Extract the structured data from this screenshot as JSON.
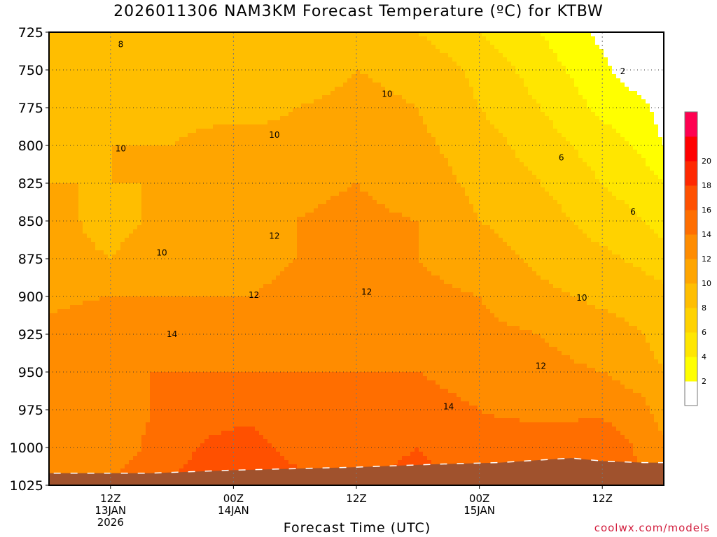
{
  "title": "2026011306 NAM3KM Forecast Temperature (ºC) for KTBW",
  "credit": "coolwx.com/models",
  "chart_data": {
    "type": "heatmap",
    "title": "2026011306 NAM3KM Forecast Temperature (ºC) for KTBW",
    "xlabel": "Forecast Time (UTC)",
    "ylabel": "",
    "y_ticks": [
      725,
      750,
      775,
      800,
      825,
      850,
      875,
      900,
      925,
      950,
      975,
      1000,
      1025
    ],
    "ylim": [
      1025,
      725
    ],
    "xlim_hours": [
      0,
      60
    ],
    "x_ticks": [
      {
        "hour": 6,
        "labels": [
          "12Z",
          "13JAN",
          "2026"
        ]
      },
      {
        "hour": 18,
        "labels": [
          "00Z",
          "14JAN"
        ]
      },
      {
        "hour": 30,
        "labels": [
          "12Z"
        ]
      },
      {
        "hour": 42,
        "labels": [
          "00Z",
          "15JAN"
        ]
      },
      {
        "hour": 54,
        "labels": [
          "12Z"
        ]
      }
    ],
    "grid": true,
    "colorbar": {
      "levels": [
        0,
        2,
        4,
        6,
        8,
        10,
        12,
        14,
        16,
        18,
        20,
        22
      ],
      "labels": [
        "2",
        "4",
        "6",
        "8",
        "10",
        "12",
        "14",
        "16",
        "18",
        "20"
      ],
      "colors": [
        "#ffffff",
        "#ffff00",
        "#ffe600",
        "#ffd200",
        "#ffbe00",
        "#ffa500",
        "#ff8c00",
        "#ff6e00",
        "#ff5000",
        "#ff2800",
        "#ff0000",
        "#ff0050"
      ]
    },
    "contour_labels": [
      {
        "text": "8",
        "hour": 7,
        "p": 733
      },
      {
        "text": "2",
        "hour": 56,
        "p": 751
      },
      {
        "text": "10",
        "hour": 33,
        "p": 766
      },
      {
        "text": "10",
        "hour": 22,
        "p": 793
      },
      {
        "text": "10",
        "hour": 7,
        "p": 802
      },
      {
        "text": "6",
        "hour": 50,
        "p": 808
      },
      {
        "text": "6",
        "hour": 57,
        "p": 844
      },
      {
        "text": "12",
        "hour": 22,
        "p": 860
      },
      {
        "text": "10",
        "hour": 11,
        "p": 871
      },
      {
        "text": "12",
        "hour": 20,
        "p": 899
      },
      {
        "text": "12",
        "hour": 31,
        "p": 897
      },
      {
        "text": "10",
        "hour": 52,
        "p": 901
      },
      {
        "text": "14",
        "hour": 12,
        "p": 925
      },
      {
        "text": "12",
        "hour": 48,
        "p": 946
      },
      {
        "text": "14",
        "hour": 39,
        "p": 973
      }
    ],
    "temperature_field": {
      "hours": [
        0,
        6,
        12,
        16,
        18,
        20,
        24,
        30,
        36,
        42,
        48,
        54,
        58,
        60
      ],
      "pressure": [
        725,
        750,
        775,
        800,
        825,
        850,
        875,
        900,
        925,
        950,
        975,
        1000,
        1025
      ],
      "values": [
        [
          8.0,
          8.5,
          8.5,
          9.0,
          9.0,
          9.0,
          9.0,
          9.5,
          8.0,
          6.0,
          4.0,
          1.5,
          0.5,
          0.5
        ],
        [
          9.0,
          9.0,
          9.0,
          9.0,
          9.0,
          9.0,
          9.0,
          10.0,
          9.5,
          7.5,
          5.0,
          2.5,
          0.5,
          0.5
        ],
        [
          9.5,
          9.5,
          9.5,
          9.5,
          9.5,
          9.5,
          10.0,
          10.5,
          10.0,
          8.0,
          6.0,
          3.5,
          2.5,
          1.0
        ],
        [
          9.5,
          10.0,
          10.0,
          10.5,
          10.5,
          10.5,
          10.5,
          11.0,
          10.5,
          9.0,
          7.0,
          5.0,
          3.5,
          2.0
        ],
        [
          10.0,
          10.0,
          10.0,
          11.0,
          11.0,
          11.0,
          11.5,
          12.0,
          11.0,
          9.5,
          8.0,
          6.0,
          5.0,
          4.0
        ],
        [
          10.5,
          9.5,
          10.5,
          11.0,
          11.5,
          11.5,
          12.0,
          12.5,
          12.0,
          10.0,
          9.0,
          7.0,
          6.0,
          5.0
        ],
        [
          10.5,
          10.0,
          11.0,
          11.0,
          11.5,
          11.5,
          12.0,
          12.5,
          12.0,
          11.0,
          9.5,
          8.5,
          7.5,
          7.0
        ],
        [
          11.5,
          12.0,
          12.0,
          12.0,
          12.0,
          12.0,
          12.5,
          12.5,
          12.5,
          12.0,
          10.5,
          9.5,
          9.0,
          8.5
        ],
        [
          12.5,
          13.5,
          13.5,
          13.5,
          13.5,
          13.5,
          13.5,
          13.5,
          13.0,
          12.5,
          12.0,
          11.0,
          10.0,
          9.0
        ],
        [
          13.0,
          14.0,
          14.0,
          14.0,
          14.0,
          14.0,
          14.0,
          14.0,
          14.0,
          13.5,
          12.5,
          12.0,
          11.0,
          10.0
        ],
        [
          13.5,
          13.0,
          14.5,
          15.0,
          15.5,
          15.5,
          14.5,
          14.5,
          14.5,
          14.0,
          13.5,
          13.5,
          12.5,
          11.0
        ],
        [
          13.5,
          13.0,
          15.0,
          16.5,
          16.5,
          16.5,
          15.5,
          15.0,
          16.0,
          14.5,
          15.0,
          15.5,
          13.5,
          12.5
        ],
        [
          14.0,
          14.0,
          16.0,
          18.0,
          18.0,
          17.5,
          16.5,
          15.5,
          17.0,
          15.0,
          15.5,
          15.5,
          14.0,
          13.0
        ]
      ]
    },
    "terrain": [
      {
        "hour": 0,
        "p": 1017
      },
      {
        "hour": 10,
        "p": 1017
      },
      {
        "hour": 18,
        "p": 1015
      },
      {
        "hour": 30,
        "p": 1013
      },
      {
        "hour": 38,
        "p": 1011
      },
      {
        "hour": 44,
        "p": 1010
      },
      {
        "hour": 51,
        "p": 1007
      },
      {
        "hour": 54,
        "p": 1009
      },
      {
        "hour": 58,
        "p": 1010
      },
      {
        "hour": 60,
        "p": 1010
      }
    ],
    "terrain_color": "#a0522d"
  }
}
